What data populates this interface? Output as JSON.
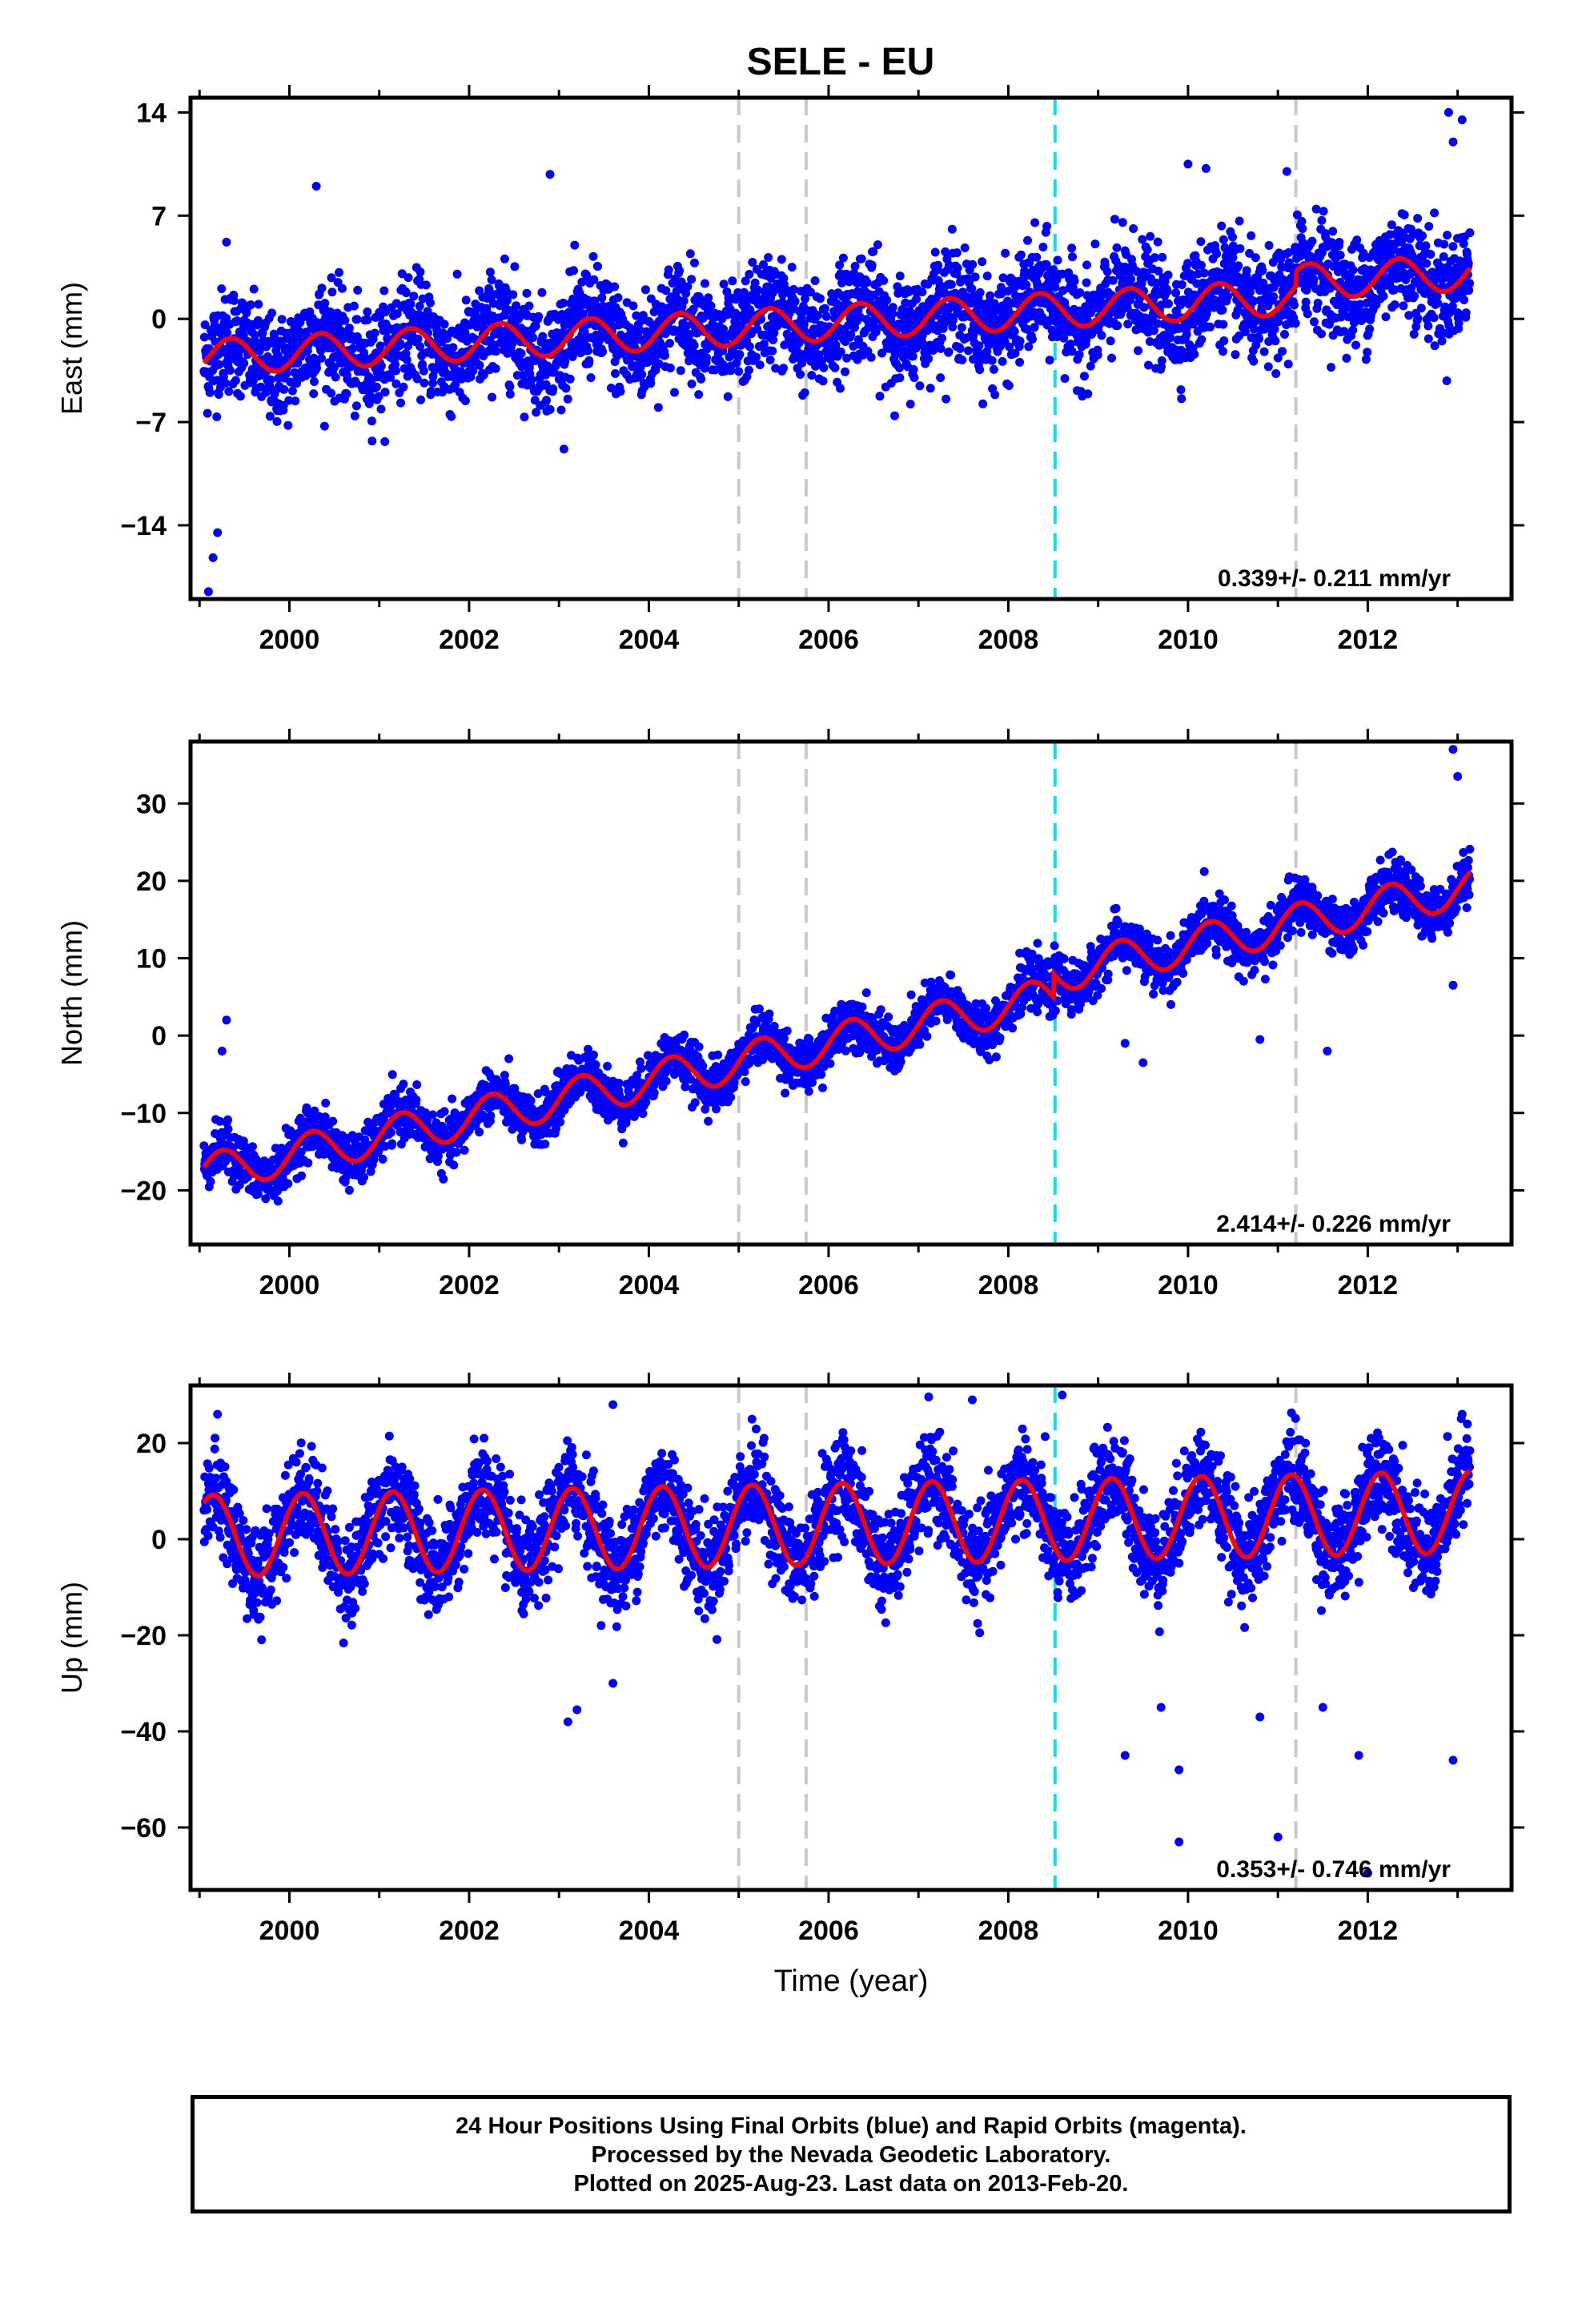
{
  "title": "SELE - EU",
  "colors": {
    "points": "#0000ff",
    "model": "#ff0000",
    "event_gray": "#c8c8c8",
    "event_cyan": "#00e5e5",
    "frame": "#000000"
  },
  "chart_data": [
    {
      "type": "scatter",
      "name": "east",
      "ylabel": "East (mm)",
      "ylim": [
        -19,
        15
      ],
      "yticks": [
        14,
        7,
        0,
        -7,
        -14
      ],
      "ytick_labels": [
        "14",
        "7",
        "0",
        "−7",
        "−14"
      ],
      "xlim": [
        1998.9,
        2013.6
      ],
      "xticks": [
        2000,
        2002,
        2004,
        2006,
        2008,
        2010,
        2012
      ],
      "xtick_labels": [
        "2000",
        "2002",
        "2004",
        "2006",
        "2008",
        "2010",
        "2012"
      ],
      "rate_label": "0.339+/- 0.211 mm/yr",
      "model": {
        "intercept_2000": -2.3,
        "trend": 0.339,
        "seasonal_amp": 1.2,
        "seasonal_phase_yr": 0.1,
        "noise_sd": 1.8,
        "offsets": [
          {
            "t": 2011.2,
            "dy": 1.0
          }
        ]
      },
      "outliers": [
        [
          1999.1,
          -18.5
        ],
        [
          1999.15,
          -16.2
        ],
        [
          1999.2,
          -14.5
        ],
        [
          2000.3,
          9.0
        ],
        [
          2002.9,
          9.8
        ],
        [
          2010.0,
          10.5
        ],
        [
          2010.2,
          10.2
        ],
        [
          2011.1,
          10.0
        ],
        [
          2012.9,
          14.0
        ],
        [
          2013.05,
          13.5
        ],
        [
          2012.95,
          12.0
        ],
        [
          1999.3,
          5.2
        ]
      ]
    },
    {
      "type": "scatter",
      "name": "north",
      "ylabel": "North (mm)",
      "ylim": [
        -27,
        38
      ],
      "yticks": [
        30,
        20,
        10,
        0,
        -10,
        -20
      ],
      "ytick_labels": [
        "30",
        "20",
        "10",
        "0",
        "−10",
        "−20"
      ],
      "xlim": [
        1998.9,
        2013.6
      ],
      "xticks": [
        2000,
        2002,
        2004,
        2006,
        2008,
        2010,
        2012
      ],
      "xtick_labels": [
        "2000",
        "2002",
        "2004",
        "2006",
        "2008",
        "2010",
        "2012"
      ],
      "rate_label": "2.414+/- 0.226 mm/yr",
      "model": {
        "intercept_2000": -15.5,
        "trend": 2.414,
        "seasonal_amp": 2.5,
        "seasonal_phase_yr": 0.0,
        "noise_sd": 1.6,
        "offsets": [
          {
            "t": 2008.5,
            "dy": 3.0
          }
        ]
      },
      "outliers": [
        [
          1999.3,
          2.0
        ],
        [
          1999.25,
          -2.0
        ],
        [
          2012.95,
          37.0
        ],
        [
          2013.0,
          33.5
        ],
        [
          2012.95,
          6.5
        ],
        [
          2011.55,
          -2.0
        ],
        [
          2009.5,
          -3.5
        ],
        [
          2010.8,
          -0.5
        ],
        [
          2009.3,
          -1.0
        ]
      ]
    },
    {
      "type": "scatter",
      "name": "up",
      "ylabel": "Up (mm)",
      "ylim": [
        -73,
        32
      ],
      "yticks": [
        20,
        0,
        -20,
        -40,
        -60
      ],
      "ytick_labels": [
        "20",
        "0",
        "−20",
        "−40",
        "−60"
      ],
      "xlim": [
        1998.9,
        2013.6
      ],
      "xticks": [
        2000,
        2002,
        2004,
        2006,
        2008,
        2010,
        2012
      ],
      "xtick_labels": [
        "2000",
        "2002",
        "2004",
        "2006",
        "2008",
        "2010",
        "2012"
      ],
      "xlabel": "Time (year)",
      "rate_label": "0.353+/- 0.746 mm/yr",
      "model": {
        "intercept_2000": 1.0,
        "trend": 0.353,
        "seasonal_amp": 8.5,
        "seasonal_phase_yr": -0.1,
        "noise_sd": 5.0,
        "offsets": []
      },
      "outliers": [
        [
          2003.1,
          -38.0
        ],
        [
          2003.2,
          -35.5
        ],
        [
          2003.6,
          -30.0
        ],
        [
          2009.3,
          -45.0
        ],
        [
          2009.7,
          -35.0
        ],
        [
          2009.9,
          -48.0
        ],
        [
          2009.9,
          -63.0
        ],
        [
          2010.8,
          -37.0
        ],
        [
          2011.0,
          -62.0
        ],
        [
          2011.5,
          -35.0
        ],
        [
          2011.9,
          -45.0
        ],
        [
          2012.0,
          -69.5
        ],
        [
          2012.95,
          -46.0
        ],
        [
          1999.2,
          26.0
        ],
        [
          2003.6,
          28.0
        ],
        [
          2007.6,
          29.0
        ],
        [
          2008.6,
          30.0
        ],
        [
          2013.05,
          26.0
        ]
      ]
    }
  ],
  "events": [
    {
      "t": 2005.0,
      "kind": "gray"
    },
    {
      "t": 2005.75,
      "kind": "gray"
    },
    {
      "t": 2008.52,
      "kind": "cyan"
    },
    {
      "t": 2011.2,
      "kind": "gray"
    }
  ],
  "data_span": [
    1999.05,
    2013.14
  ],
  "footer": {
    "line1": "24 Hour Positions Using Final Orbits (blue) and Rapid Orbits (magenta).",
    "line2": "Processed by the Nevada Geodetic Laboratory.",
    "line3": "Plotted on 2025-Aug-23. Last data on 2013-Feb-20."
  }
}
